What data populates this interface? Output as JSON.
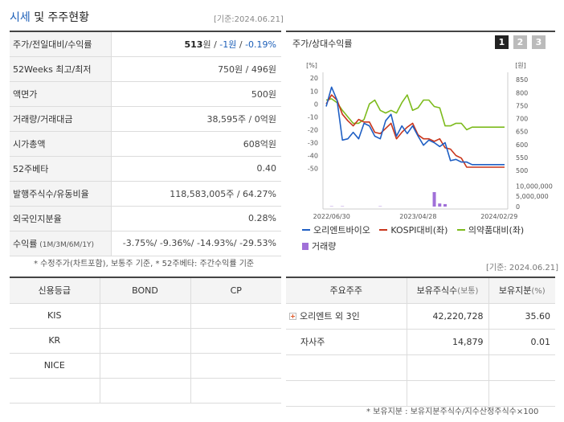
{
  "header": {
    "title_part1": "시세",
    "title_part2": " 및 주주현황",
    "date": "[기준:2024.06.21]"
  },
  "price_rows": [
    {
      "label": "주가/전일대비/수익률",
      "price": "513",
      "unit": "원 / ",
      "change": "-1원",
      "sep": " / ",
      "rate": "-0.19%"
    },
    {
      "label": "52Weeks 최고/최저",
      "value": "750원 / 496원"
    },
    {
      "label": "액면가",
      "value": "500원"
    },
    {
      "label": "거래량/거래대금",
      "value": "38,595주 / 0억원"
    },
    {
      "label": "시가총액",
      "value": "608억원"
    },
    {
      "label": "52주베타",
      "value": "0.40"
    },
    {
      "label": "발행주식수/유동비율",
      "value": "118,583,005주 / 64.27%"
    },
    {
      "label": "외국인지분율",
      "value": "0.28%"
    },
    {
      "label": "수익률",
      "label_sub": " (1M/3M/6M/1Y)",
      "value": "-3.75%/ -9.36%/ -14.93%/ -29.53%"
    }
  ],
  "note_left": "* 수정주가(차트포함), 보통주 기준, * 52주베타: 주간수익률 기준",
  "chart_panel": {
    "title": "주가/상대수익률",
    "tabs": [
      "1",
      "2",
      "3"
    ],
    "active_tab": 0
  },
  "chart_data": {
    "type": "line",
    "x_tick_labels": [
      "2022/06/30",
      "2023/04/28",
      "2024/02/29"
    ],
    "left_axis": {
      "unit_label": "[%]",
      "ticks": [
        20,
        10,
        0,
        -10,
        -20,
        -30,
        -40,
        -50
      ],
      "range": [
        -54,
        22
      ]
    },
    "right_axis": {
      "unit_label": "[원]",
      "ticks": [
        850,
        800,
        750,
        700,
        650,
        600,
        550,
        500
      ],
      "range": [
        488,
        866
      ]
    },
    "volume_axis": {
      "ticks": [
        "10,000,000",
        "5,000,000",
        "0"
      ],
      "range": [
        0,
        10500000
      ]
    },
    "x_count": 34,
    "series": [
      {
        "name": "오리엔트바이오",
        "color": "#1f5fc4",
        "axis": "left",
        "values": [
          -2,
          13,
          3,
          -28,
          -27,
          -22,
          -27,
          -15,
          -17,
          -25,
          -27,
          -13,
          -8,
          -25,
          -17,
          -23,
          -17,
          -25,
          -32,
          -28,
          -30,
          -33,
          -30,
          -44,
          -43,
          -45,
          -45,
          -47,
          -47,
          -47,
          -47,
          -47,
          -47,
          -47
        ]
      },
      {
        "name": "KOSPI대비(좌)",
        "color": "#c9361c",
        "axis": "left",
        "values": [
          0,
          7,
          3,
          -8,
          -13,
          -17,
          -12,
          -14,
          -14,
          -22,
          -23,
          -19,
          -15,
          -27,
          -22,
          -18,
          -15,
          -24,
          -27,
          -27,
          -29,
          -27,
          -34,
          -35,
          -40,
          -42,
          -49,
          -49,
          -49,
          -49,
          -49,
          -49,
          -49,
          -49
        ]
      },
      {
        "name": "의약품대비(좌)",
        "color": "#7dbb1d",
        "axis": "left",
        "values": [
          3,
          4,
          1,
          -5,
          -10,
          -15,
          -15,
          -12,
          0,
          3,
          -5,
          -7,
          -5,
          -7,
          1,
          7,
          -5,
          -3,
          3,
          3,
          -2,
          -3,
          -17,
          -17,
          -15,
          -15,
          -20,
          -18,
          -18,
          -18,
          -18,
          -18,
          -18,
          -18
        ]
      },
      {
        "name": "거래량",
        "color": "#a070d8",
        "axis": "volume",
        "values": [
          0,
          150000,
          0,
          150000,
          0,
          0,
          0,
          0,
          0,
          0,
          150000,
          0,
          0,
          0,
          0,
          0,
          0,
          0,
          0,
          0,
          7000000,
          1500000,
          1200000,
          0,
          0,
          0,
          0,
          0,
          0,
          0,
          0,
          0,
          0,
          0
        ]
      }
    ]
  },
  "date_mid": "[기준: 2024.06.21]",
  "credit": {
    "headers": [
      "신용등급",
      "BOND",
      "CP"
    ],
    "rows": [
      [
        "KIS",
        "",
        ""
      ],
      [
        "KR",
        "",
        ""
      ],
      [
        "NICE",
        "",
        ""
      ],
      [
        "",
        "",
        ""
      ]
    ]
  },
  "holders": {
    "headers": {
      "name": "주요주주",
      "shares": "보유주식수",
      "shares_sub": "(보통)",
      "ratio": "보유지분",
      "ratio_sub": "(%)"
    },
    "rows": [
      {
        "name": "오리엔트 외 3인",
        "shares": "42,220,728",
        "ratio": "35.60",
        "expandable": true
      },
      {
        "name": "자사주",
        "shares": "14,879",
        "ratio": "0.01",
        "expandable": false
      },
      {
        "name": "",
        "shares": "",
        "ratio": "",
        "expandable": false
      },
      {
        "name": "",
        "shares": "",
        "ratio": "",
        "expandable": false
      }
    ]
  },
  "note_right": "* 보유지분 : 보유지분주식수/지수산정주식수×100",
  "colors": {
    "accent_blue": "#1c5fb8",
    "down": "#1c5fb8"
  }
}
